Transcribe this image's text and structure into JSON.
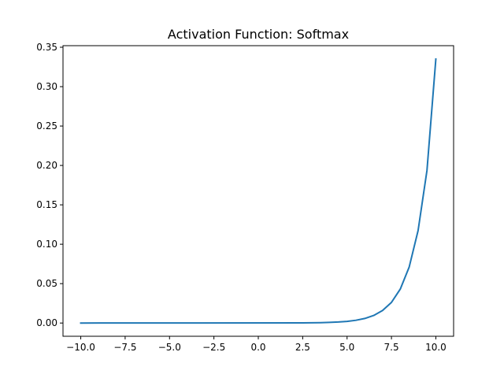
{
  "chart_data": {
    "type": "line",
    "title": "Activation Function: Softmax",
    "xlabel": "",
    "ylabel": "",
    "xlim": [
      -11.0,
      11.0
    ],
    "ylim": [
      -0.0168,
      0.352
    ],
    "xticks": [
      -10.0,
      -7.5,
      -5.0,
      -2.5,
      0.0,
      2.5,
      5.0,
      7.5,
      10.0
    ],
    "xtick_labels": [
      "−10.0",
      "−7.5",
      "−5.0",
      "−2.5",
      "0.0",
      "2.5",
      "5.0",
      "7.5",
      "10.0"
    ],
    "yticks": [
      0.0,
      0.05,
      0.1,
      0.15,
      0.2,
      0.25,
      0.3,
      0.35
    ],
    "ytick_labels": [
      "0.00",
      "0.05",
      "0.10",
      "0.15",
      "0.20",
      "0.25",
      "0.30",
      "0.35"
    ],
    "grid": false,
    "series": [
      {
        "color": "#1f77b4",
        "x": [
          -10.0,
          2.5,
          3.0,
          3.5,
          4.0,
          4.5,
          5.0,
          5.5,
          6.0,
          6.5,
          7.0,
          7.5,
          8.0,
          8.5,
          9.0,
          9.5,
          10.0
        ],
        "y": [
          0.0,
          0.0002,
          0.0003,
          0.0005,
          0.0008,
          0.0013,
          0.0021,
          0.0035,
          0.0058,
          0.0096,
          0.0159,
          0.0262,
          0.0432,
          0.0712,
          0.1174,
          0.1936,
          0.335
        ]
      }
    ]
  }
}
